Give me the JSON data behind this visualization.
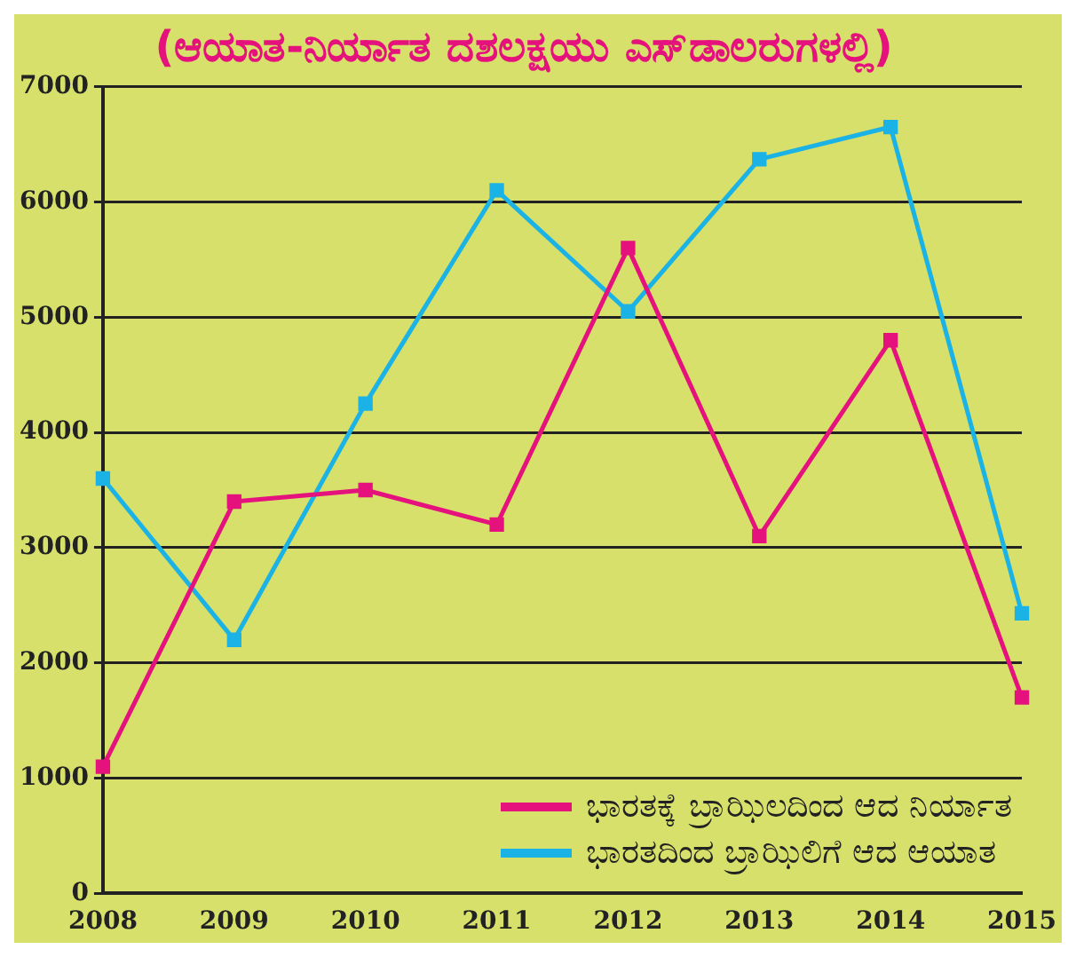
{
  "chart_data": {
    "type": "line",
    "title": "(ಆಯಾತ-ನಿರ್ಯಾತ ದಶಲಕ್ಷಯು ಎಸ್‌ಡಾಲರುಗಳಲ್ಲಿ)",
    "x": [
      2008,
      2009,
      2010,
      2011,
      2012,
      2013,
      2014,
      2015
    ],
    "series": [
      {
        "name": "ಭಾರತಕ್ಕೆ ಬ್ರಾಝಿಲದಿಂದ ಆದ ನಿರ್ಯಾತ",
        "color": "#e5127d",
        "values": [
          1100,
          3400,
          3500,
          3200,
          5600,
          3100,
          4800,
          1700
        ]
      },
      {
        "name": "ಭಾರತದಿಂದ ಬ್ರಾಝಿಲಿಗೆ ಆದ ಆಯಾತ",
        "color": "#1bb2e6",
        "values": [
          3600,
          2200,
          4250,
          6100,
          5050,
          6370,
          6650,
          2430
        ]
      }
    ],
    "xlim": [
      2008,
      2015
    ],
    "xticks": [
      2008,
      2009,
      2010,
      2011,
      2012,
      2013,
      2014,
      2015
    ],
    "ylim": [
      0,
      7000
    ],
    "yticks": [
      0,
      1000,
      2000,
      3000,
      4000,
      5000,
      6000,
      7000
    ],
    "grid": "y",
    "legend": "bottom right",
    "marker": "square",
    "line_style": "solid"
  }
}
